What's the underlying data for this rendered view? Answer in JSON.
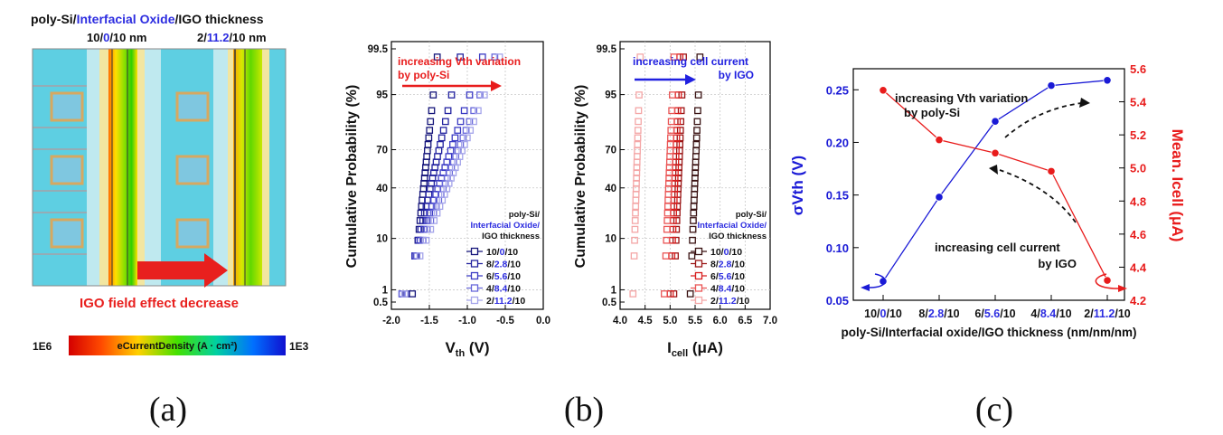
{
  "panel_a": {
    "label": "(a)",
    "title": {
      "p1": "poly-Si/",
      "p2": "Interfacial Oxide",
      "p3": "/IGO thickness"
    },
    "left_caption": {
      "p1": "10/",
      "p2": "0",
      "p3": "/10 nm"
    },
    "right_caption": {
      "p1": "2/",
      "p2": "11.2",
      "p3": "/10 nm"
    },
    "annotation": "IGO field effect decrease",
    "colorbar": {
      "label": "eCurrentDensity (A · cm²)",
      "min_label": "1E6",
      "max_label": "1E3"
    },
    "colors": {
      "background": "#5ecfe2",
      "red": "#e8201e",
      "blue": "#2d2de0"
    }
  },
  "panel_b": {
    "label": "(b)",
    "ylabel": "Cumulative Probability (%)",
    "yticks": [
      "99.5",
      "95",
      "70",
      "40",
      "10",
      "1",
      "0.5"
    ],
    "ytick_values": [
      99.5,
      95,
      70,
      40,
      10,
      1,
      0.5
    ],
    "legend_title": {
      "l1": "poly-Si/",
      "l2": "Interfacial Oxide/",
      "l3": "IGO thickness"
    },
    "legend_entries": [
      {
        "p1": "10/",
        "p2": "0",
        "p3": "/10"
      },
      {
        "p1": "8/",
        "p2": "2.8",
        "p3": "/10"
      },
      {
        "p1": "6/",
        "p2": "5.6",
        "p3": "/10"
      },
      {
        "p1": "4/",
        "p2": "8.4",
        "p3": "/10"
      },
      {
        "p1": "2/",
        "p2": "11.2",
        "p3": "/10"
      }
    ]
  },
  "chart_data": [
    {
      "type": "scatter",
      "panel": "b-left",
      "xlabel": "Vth (V)",
      "xlim": [
        -2.0,
        0.0
      ],
      "xticks": [
        "-2.0",
        "-1.5",
        "-1.0",
        "-0.5",
        "0.0"
      ],
      "xtick_values": [
        -2.0,
        -1.5,
        -1.0,
        -0.5,
        0.0
      ],
      "ylabel": "Cumulative Probability (%)",
      "yscale": "normal-probability",
      "ylim": [
        0.5,
        99.5
      ],
      "annotation": {
        "l1": "increasing Vth variation",
        "l2": "by poly-Si"
      },
      "series": [
        {
          "name": "10/0/10",
          "color": "#15157a",
          "median": -1.56,
          "sigma": 0.068
        },
        {
          "name": "8/2.8/10",
          "color": "#22229f",
          "median": -1.45,
          "sigma": 0.148
        },
        {
          "name": "6/5.6/10",
          "color": "#3b3bc4",
          "median": -1.33,
          "sigma": 0.22
        },
        {
          "name": "4/8.4/10",
          "color": "#6868da",
          "median": -1.25,
          "sigma": 0.254
        },
        {
          "name": "2/11.2/10",
          "color": "#a4a4ea",
          "median": -1.2,
          "sigma": 0.259
        }
      ]
    },
    {
      "type": "scatter",
      "panel": "b-right",
      "xlabel": "Icell (μA)",
      "xlim": [
        4.0,
        7.0
      ],
      "xticks": [
        "4.0",
        "4.5",
        "5.0",
        "5.5",
        "6.0",
        "6.5",
        "7.0"
      ],
      "xtick_values": [
        4.0,
        4.5,
        5.0,
        5.5,
        6.0,
        6.5,
        7.0
      ],
      "ylabel": "Cumulative Probability (%)",
      "yscale": "normal-probability",
      "ylim": [
        0.5,
        99.5
      ],
      "annotation": {
        "l1": "increasing cell current",
        "l2": "by IGO"
      },
      "series": [
        {
          "name": "10/0/10",
          "color": "#3a1212",
          "median": 5.5,
          "sigma": 0.04
        },
        {
          "name": "8/2.8/10",
          "color": "#9a1414",
          "median": 5.17,
          "sigma": 0.04
        },
        {
          "name": "6/5.6/10",
          "color": "#d81c1c",
          "median": 5.1,
          "sigma": 0.04
        },
        {
          "name": "4/8.4/10",
          "color": "#ea5555",
          "median": 4.98,
          "sigma": 0.04
        },
        {
          "name": "2/11.2/10",
          "color": "#f4a6a6",
          "median": 4.33,
          "sigma": 0.03
        }
      ]
    },
    {
      "type": "line",
      "panel": "c",
      "categories": [
        {
          "p1": "10/",
          "p2": "0",
          "p3": "/10"
        },
        {
          "p1": "8/",
          "p2": "2.8",
          "p3": "/10"
        },
        {
          "p1": "6/",
          "p2": "5.6",
          "p3": "/10"
        },
        {
          "p1": "4/",
          "p2": "8.4",
          "p3": "/10"
        },
        {
          "p1": "2/",
          "p2": "11.2",
          "p3": "/10"
        }
      ],
      "xlabel": "poly-Si/Interfacial oxide/IGO thickness (nm/nm/nm)",
      "left_axis": {
        "label": "σVth (V)",
        "ylim": [
          0.05,
          0.27
        ],
        "ticks": [
          "0.05",
          "0.10",
          "0.15",
          "0.20",
          "0.25"
        ],
        "tick_values": [
          0.05,
          0.1,
          0.15,
          0.2,
          0.25
        ],
        "color": "#1a1ad6"
      },
      "right_axis": {
        "label": "Mean. Icell (μA)",
        "ylim": [
          4.2,
          5.6
        ],
        "ticks": [
          "4.2",
          "4.4",
          "4.6",
          "4.8",
          "5.0",
          "5.2",
          "5.4",
          "5.6"
        ],
        "tick_values": [
          4.2,
          4.4,
          4.6,
          4.8,
          5.0,
          5.2,
          5.4,
          5.6
        ],
        "color": "#e81c1c"
      },
      "series": [
        {
          "axis": "left",
          "values": [
            0.068,
            0.148,
            0.22,
            0.254,
            0.259
          ],
          "color": "#1a1ad6"
        },
        {
          "axis": "right",
          "values": [
            5.47,
            5.17,
            5.09,
            4.98,
            4.32
          ],
          "color": "#e81c1c"
        }
      ],
      "annotations": [
        {
          "l1": "increasing Vth variation",
          "l2": "by poly-Si"
        },
        {
          "l1": "increasing cell current",
          "l2": "by IGO"
        }
      ]
    }
  ],
  "panel_labels": {
    "b": "(b)",
    "c": "(c)"
  }
}
